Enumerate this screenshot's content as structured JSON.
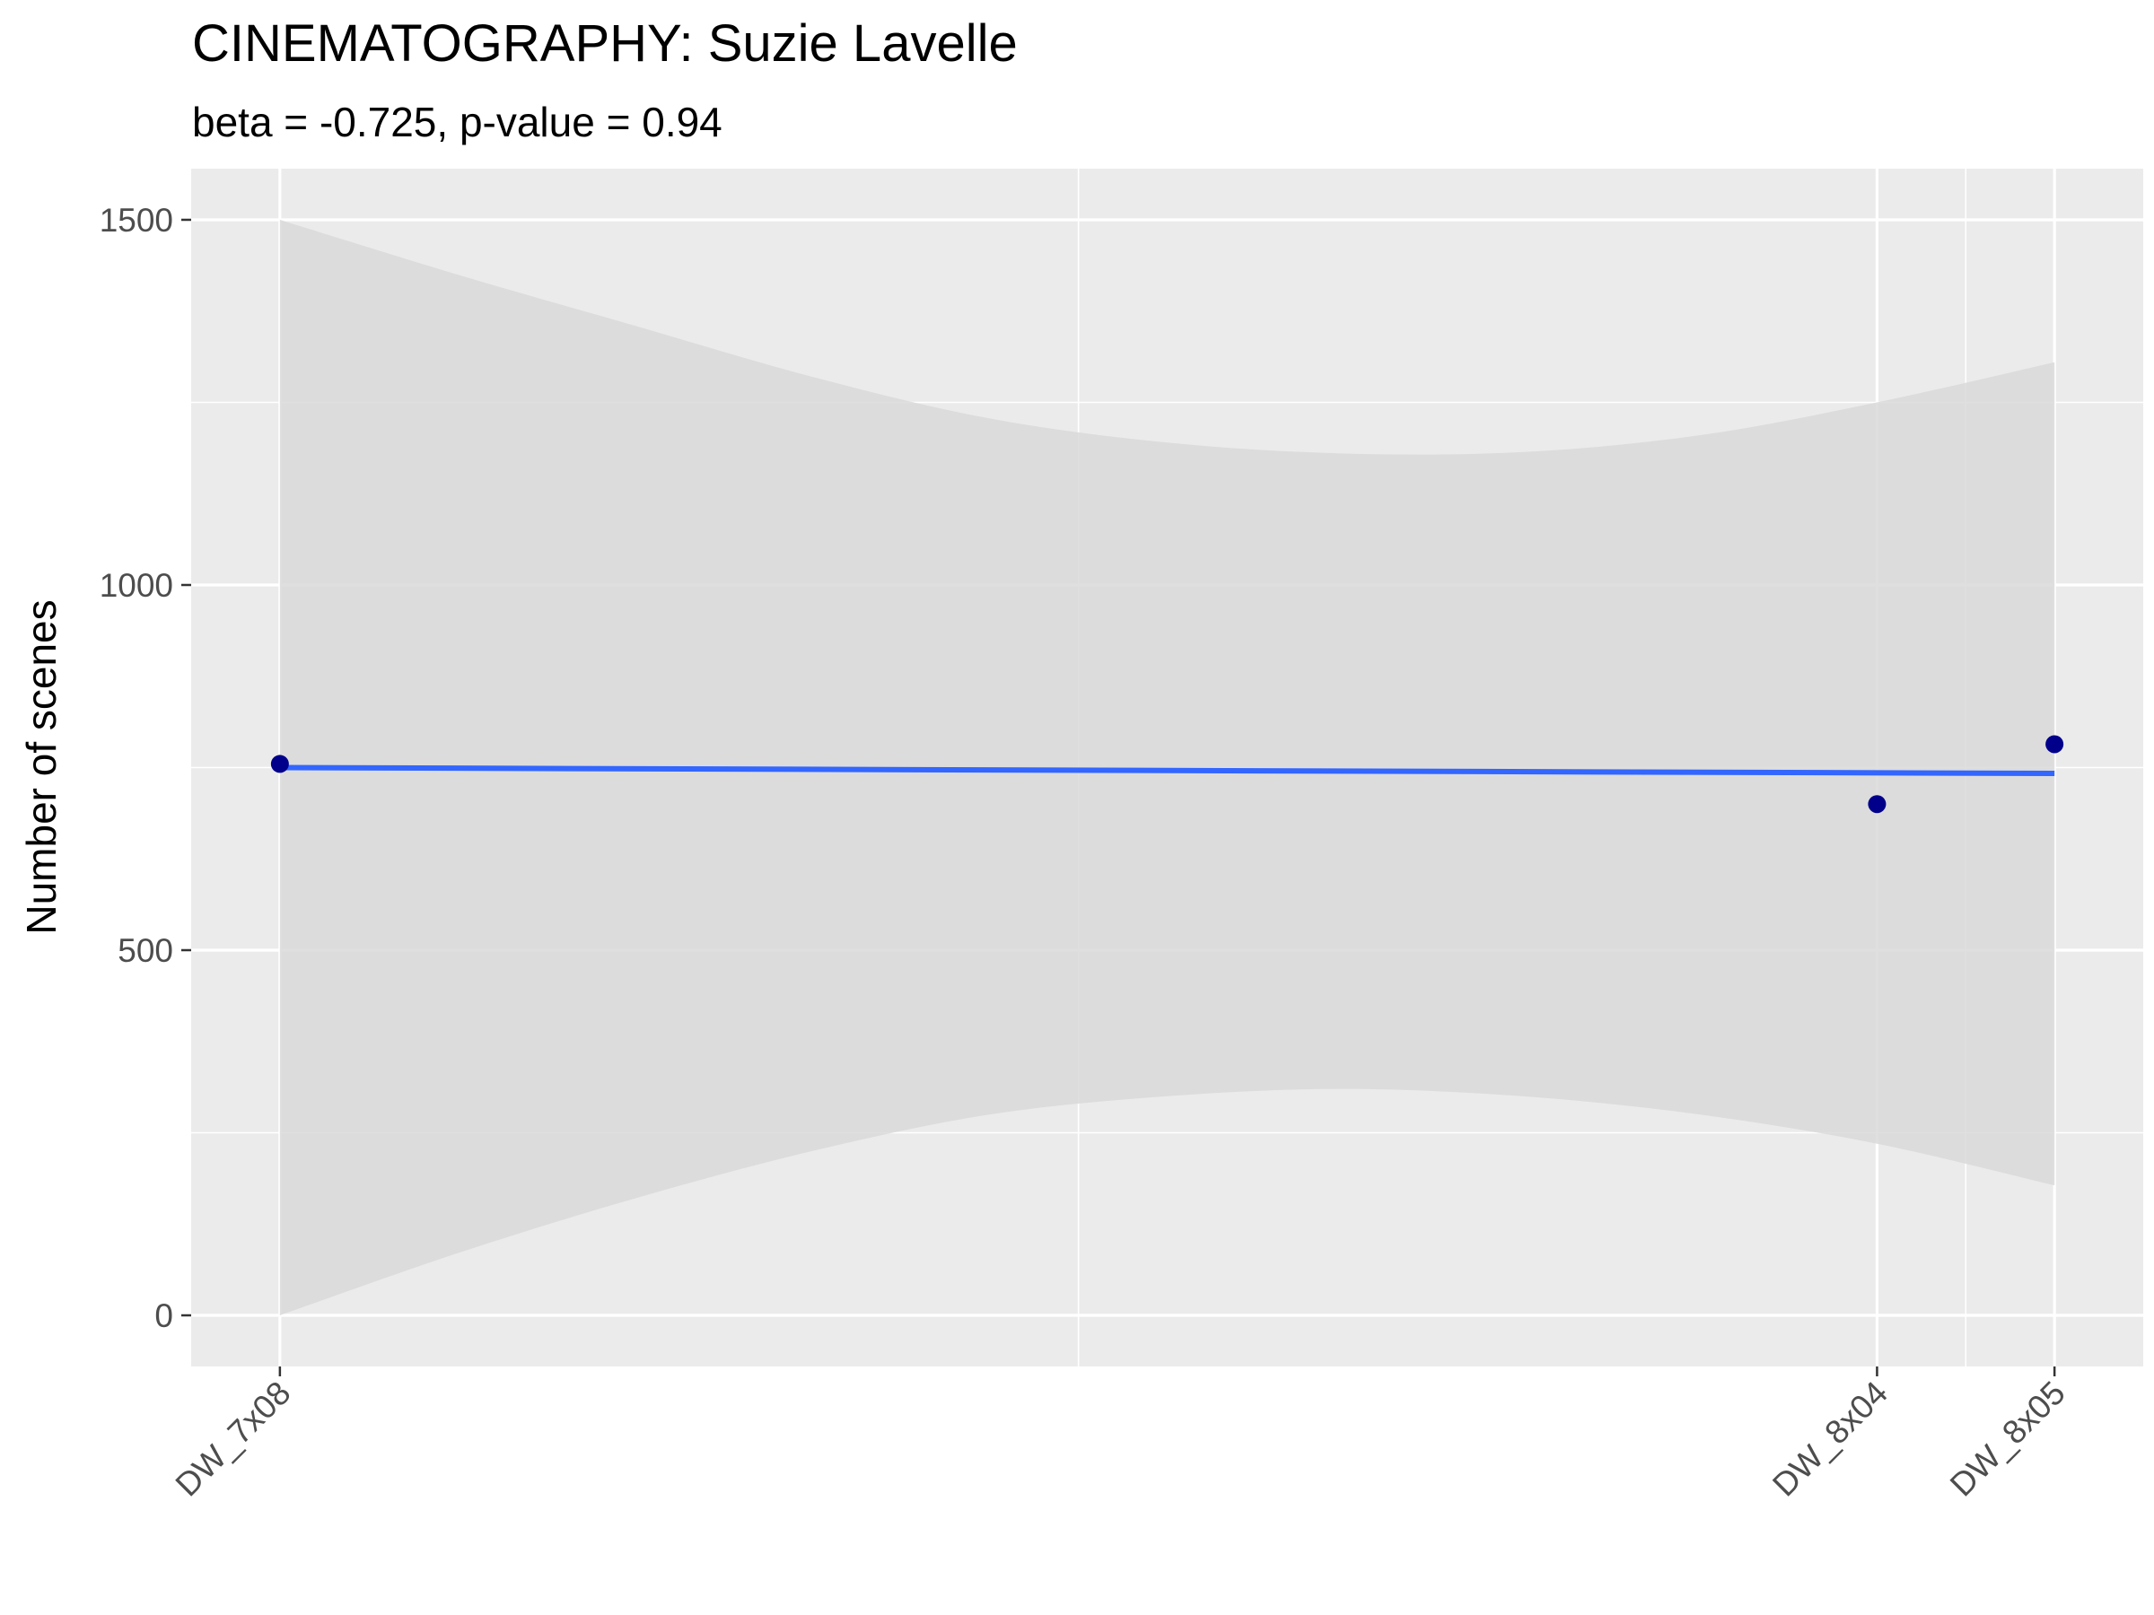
{
  "chart_data": {
    "type": "scatter",
    "title": "CINEMATOGRAPHY: Suzie Lavelle",
    "subtitle": "beta = -0.725, p-value = 0.94",
    "xlabel": "",
    "ylabel": "Number of scenes",
    "x_ticks": [
      {
        "label": "DW_7x08",
        "position": 0
      },
      {
        "label": "DW_8x04",
        "position": 9
      },
      {
        "label": "DW_8x05",
        "position": 10
      }
    ],
    "x_minor_gridlines": [
      4.5,
      9.5
    ],
    "xlim": [
      -0.5,
      10.5
    ],
    "ylim": [
      -70,
      1570
    ],
    "y_ticks": [
      0,
      500,
      1000,
      1500
    ],
    "y_minor_gridlines": [
      250,
      750,
      1250
    ],
    "grid": true,
    "points": [
      {
        "label": "DW_7x08",
        "x": 0,
        "y": 755
      },
      {
        "label": "DW_8x04",
        "x": 9,
        "y": 700
      },
      {
        "label": "DW_8x05",
        "x": 10,
        "y": 782
      }
    ],
    "fit_line": {
      "x": [
        0,
        10
      ],
      "y": [
        750,
        742
      ]
    },
    "confidence_band": {
      "x": [
        0,
        1,
        2,
        3,
        4,
        5,
        6,
        7,
        8,
        9,
        10
      ],
      "upper": [
        1500,
        1425,
        1355,
        1285,
        1228,
        1195,
        1180,
        1182,
        1205,
        1250,
        1305
      ],
      "lower": [
        0,
        85,
        160,
        225,
        275,
        300,
        310,
        300,
        275,
        235,
        178
      ]
    },
    "colors": {
      "panel_background": "#ebebeb",
      "gridline": "#ffffff",
      "point": "#00008b",
      "fit_line": "#3366ff",
      "band": "#d9d9d9"
    }
  }
}
